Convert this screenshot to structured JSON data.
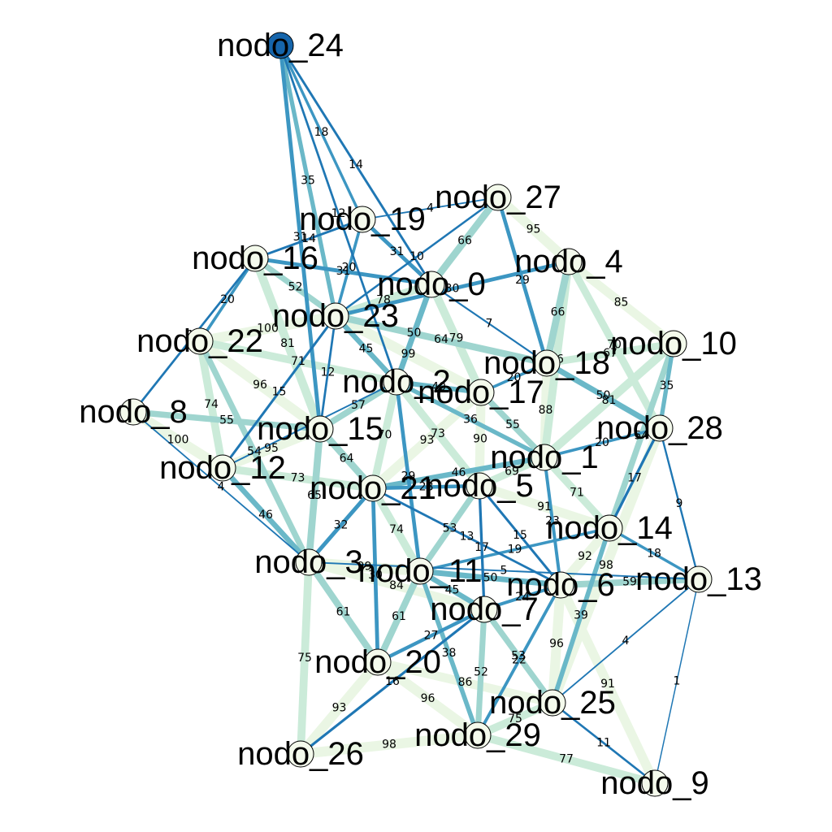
{
  "colors": {
    "background": "#ffffff",
    "node_fill": "#f4faec",
    "node_fill_highlight": "#1665ab",
    "node_stroke": "#000000",
    "edge_scale": [
      "#1f77b4",
      "#3c96c2",
      "#6ab8c8",
      "#9fd5cf",
      "#cbebd9",
      "#eaf6e4"
    ]
  },
  "nodes": [
    {
      "id": "nodo_0",
      "label": "nodo_0"
    },
    {
      "id": "nodo_1",
      "label": "nodo_1"
    },
    {
      "id": "nodo_2",
      "label": "nodo_2"
    },
    {
      "id": "nodo_3",
      "label": "nodo_3"
    },
    {
      "id": "nodo_4",
      "label": "nodo_4"
    },
    {
      "id": "nodo_5",
      "label": "nodo_5"
    },
    {
      "id": "nodo_6",
      "label": "nodo_6"
    },
    {
      "id": "nodo_7",
      "label": "nodo_7"
    },
    {
      "id": "nodo_8",
      "label": "nodo_8"
    },
    {
      "id": "nodo_9",
      "label": "nodo_9"
    },
    {
      "id": "nodo_10",
      "label": "nodo_10"
    },
    {
      "id": "nodo_11",
      "label": "nodo_11"
    },
    {
      "id": "nodo_12",
      "label": "nodo_12"
    },
    {
      "id": "nodo_13",
      "label": "nodo_13"
    },
    {
      "id": "nodo_14",
      "label": "nodo_14"
    },
    {
      "id": "nodo_15",
      "label": "nodo_15"
    },
    {
      "id": "nodo_16",
      "label": "nodo_16"
    },
    {
      "id": "nodo_17",
      "label": "nodo_17"
    },
    {
      "id": "nodo_18",
      "label": "nodo_18"
    },
    {
      "id": "nodo_19",
      "label": "nodo_19"
    },
    {
      "id": "nodo_20",
      "label": "nodo_20"
    },
    {
      "id": "nodo_21",
      "label": "nodo_21"
    },
    {
      "id": "nodo_22",
      "label": "nodo_22"
    },
    {
      "id": "nodo_23",
      "label": "nodo_23"
    },
    {
      "id": "nodo_24",
      "label": "nodo_24",
      "highlight": true
    },
    {
      "id": "nodo_25",
      "label": "nodo_25"
    },
    {
      "id": "nodo_26",
      "label": "nodo_26"
    },
    {
      "id": "nodo_27",
      "label": "nodo_27"
    },
    {
      "id": "nodo_28",
      "label": "nodo_28"
    },
    {
      "id": "nodo_29",
      "label": "nodo_29"
    }
  ],
  "edges": [
    {
      "source": "nodo_24",
      "target": "nodo_23",
      "weight": 35
    },
    {
      "source": "nodo_24",
      "target": "nodo_19",
      "weight": 18
    },
    {
      "source": "nodo_24",
      "target": "nodo_15",
      "weight": 31
    },
    {
      "source": "nodo_24",
      "target": "nodo_2",
      "weight": 12
    },
    {
      "source": "nodo_24",
      "target": "nodo_0",
      "weight": 14
    },
    {
      "source": "nodo_19",
      "target": "nodo_27",
      "weight": 4
    },
    {
      "source": "nodo_19",
      "target": "nodo_0",
      "weight": 31
    },
    {
      "source": "nodo_19",
      "target": "nodo_23",
      "weight": 20
    },
    {
      "source": "nodo_19",
      "target": "nodo_16",
      "weight": 14
    },
    {
      "source": "nodo_16",
      "target": "nodo_0",
      "weight": 31
    },
    {
      "source": "nodo_16",
      "target": "nodo_22",
      "weight": 20
    },
    {
      "source": "nodo_16",
      "target": "nodo_15",
      "weight": 81
    },
    {
      "source": "nodo_16",
      "target": "nodo_8",
      "weight": 12
    },
    {
      "source": "nodo_16",
      "target": "nodo_23",
      "weight": 52
    },
    {
      "source": "nodo_27",
      "target": "nodo_0",
      "weight": 66
    },
    {
      "source": "nodo_27",
      "target": "nodo_4",
      "weight": 95
    },
    {
      "source": "nodo_27",
      "target": "nodo_18",
      "weight": 29
    },
    {
      "source": "nodo_27",
      "target": "nodo_23",
      "weight": 10
    },
    {
      "source": "nodo_0",
      "target": "nodo_23",
      "weight": 78
    },
    {
      "source": "nodo_0",
      "target": "nodo_2",
      "weight": 50
    },
    {
      "source": "nodo_0",
      "target": "nodo_17",
      "weight": 79
    },
    {
      "source": "nodo_0",
      "target": "nodo_18",
      "weight": 7
    },
    {
      "source": "nodo_4",
      "target": "nodo_23",
      "weight": 30
    },
    {
      "source": "nodo_4",
      "target": "nodo_18",
      "weight": 66
    },
    {
      "source": "nodo_4",
      "target": "nodo_10",
      "weight": 85
    },
    {
      "source": "nodo_4",
      "target": "nodo_28",
      "weight": 70
    },
    {
      "source": "nodo_4",
      "target": "nodo_1",
      "weight": 76
    },
    {
      "source": "nodo_23",
      "target": "nodo_22",
      "weight": 100
    },
    {
      "source": "nodo_23",
      "target": "nodo_2",
      "weight": 45
    },
    {
      "source": "nodo_23",
      "target": "nodo_17",
      "weight": 99
    },
    {
      "source": "nodo_23",
      "target": "nodo_15",
      "weight": 12
    },
    {
      "source": "nodo_23",
      "target": "nodo_18",
      "weight": 64
    },
    {
      "source": "nodo_22",
      "target": "nodo_2",
      "weight": 71
    },
    {
      "source": "nodo_22",
      "target": "nodo_12",
      "weight": 74
    },
    {
      "source": "nodo_22",
      "target": "nodo_15",
      "weight": 96
    },
    {
      "source": "nodo_22",
      "target": "nodo_3",
      "weight": 54
    },
    {
      "source": "nodo_8",
      "target": "nodo_12",
      "weight": 100
    },
    {
      "source": "nodo_8",
      "target": "nodo_3",
      "weight": 4
    },
    {
      "source": "nodo_8",
      "target": "nodo_15",
      "weight": 55
    },
    {
      "source": "nodo_12",
      "target": "nodo_15",
      "weight": 95
    },
    {
      "source": "nodo_12",
      "target": "nodo_2",
      "weight": 5
    },
    {
      "source": "nodo_12",
      "target": "nodo_21",
      "weight": 73
    },
    {
      "source": "nodo_12",
      "target": "nodo_3",
      "weight": 46
    },
    {
      "source": "nodo_12",
      "target": "nodo_23",
      "weight": 15
    },
    {
      "source": "nodo_15",
      "target": "nodo_2",
      "weight": 57
    },
    {
      "source": "nodo_15",
      "target": "nodo_21",
      "weight": 64
    },
    {
      "source": "nodo_15",
      "target": "nodo_3",
      "weight": 65
    },
    {
      "source": "nodo_2",
      "target": "nodo_17",
      "weight": 40
    },
    {
      "source": "nodo_2",
      "target": "nodo_21",
      "weight": 70
    },
    {
      "source": "nodo_2",
      "target": "nodo_5",
      "weight": 73
    },
    {
      "source": "nodo_2",
      "target": "nodo_1",
      "weight": 36
    },
    {
      "source": "nodo_2",
      "target": "nodo_11",
      "weight": 29
    },
    {
      "source": "nodo_17",
      "target": "nodo_18",
      "weight": 20
    },
    {
      "source": "nodo_17",
      "target": "nodo_1",
      "weight": 55
    },
    {
      "source": "nodo_17",
      "target": "nodo_5",
      "weight": 90
    },
    {
      "source": "nodo_17",
      "target": "nodo_21",
      "weight": 93
    },
    {
      "source": "nodo_18",
      "target": "nodo_10",
      "weight": 67
    },
    {
      "source": "nodo_18",
      "target": "nodo_28",
      "weight": 50
    },
    {
      "source": "nodo_18",
      "target": "nodo_1",
      "weight": 88
    },
    {
      "source": "nodo_10",
      "target": "nodo_28",
      "weight": 35
    },
    {
      "source": "nodo_10",
      "target": "nodo_1",
      "weight": 81
    },
    {
      "source": "nodo_10",
      "target": "nodo_14",
      "weight": 54
    },
    {
      "source": "nodo_28",
      "target": "nodo_14",
      "weight": 17
    },
    {
      "source": "nodo_28",
      "target": "nodo_13",
      "weight": 9
    },
    {
      "source": "nodo_28",
      "target": "nodo_1",
      "weight": 20
    },
    {
      "source": "nodo_1",
      "target": "nodo_5",
      "weight": 69
    },
    {
      "source": "nodo_1",
      "target": "nodo_14",
      "weight": 71
    },
    {
      "source": "nodo_1",
      "target": "nodo_6",
      "weight": 23
    },
    {
      "source": "nodo_1",
      "target": "nodo_21",
      "weight": 46
    },
    {
      "source": "nodo_21",
      "target": "nodo_5",
      "weight": 28
    },
    {
      "source": "nodo_21",
      "target": "nodo_3",
      "weight": 32
    },
    {
      "source": "nodo_21",
      "target": "nodo_11",
      "weight": 74
    },
    {
      "source": "nodo_21",
      "target": "nodo_20",
      "weight": 30
    },
    {
      "source": "nodo_21",
      "target": "nodo_6",
      "weight": 13
    },
    {
      "source": "nodo_5",
      "target": "nodo_11",
      "weight": 53
    },
    {
      "source": "nodo_5",
      "target": "nodo_6",
      "weight": 15
    },
    {
      "source": "nodo_5",
      "target": "nodo_14",
      "weight": 91
    },
    {
      "source": "nodo_5",
      "target": "nodo_7",
      "weight": 17
    },
    {
      "source": "nodo_14",
      "target": "nodo_13",
      "weight": 18
    },
    {
      "source": "nodo_14",
      "target": "nodo_6",
      "weight": 92
    },
    {
      "source": "nodo_14",
      "target": "nodo_11",
      "weight": 19
    },
    {
      "source": "nodo_14",
      "target": "nodo_25",
      "weight": 39
    },
    {
      "source": "nodo_3",
      "target": "nodo_11",
      "weight": 99
    },
    {
      "source": "nodo_3",
      "target": "nodo_20",
      "weight": 61
    },
    {
      "source": "nodo_3",
      "target": "nodo_26",
      "weight": 75
    },
    {
      "source": "nodo_3",
      "target": "nodo_7",
      "weight": 84
    },
    {
      "source": "nodo_3",
      "target": "nodo_13",
      "weight": 5
    },
    {
      "source": "nodo_11",
      "target": "nodo_7",
      "weight": 45
    },
    {
      "source": "nodo_11",
      "target": "nodo_20",
      "weight": 61
    },
    {
      "source": "nodo_11",
      "target": "nodo_6",
      "weight": 50
    },
    {
      "source": "nodo_11",
      "target": "nodo_29",
      "weight": 38
    },
    {
      "source": "nodo_6",
      "target": "nodo_13",
      "weight": 59
    },
    {
      "source": "nodo_6",
      "target": "nodo_7",
      "weight": 24
    },
    {
      "source": "nodo_6",
      "target": "nodo_25",
      "weight": 96
    },
    {
      "source": "nodo_6",
      "target": "nodo_9",
      "weight": 91
    },
    {
      "source": "nodo_6",
      "target": "nodo_29",
      "weight": 22
    },
    {
      "source": "nodo_13",
      "target": "nodo_25",
      "weight": 4
    },
    {
      "source": "nodo_13",
      "target": "nodo_9",
      "weight": 1
    },
    {
      "source": "nodo_7",
      "target": "nodo_20",
      "weight": 27
    },
    {
      "source": "nodo_7",
      "target": "nodo_29",
      "weight": 52
    },
    {
      "source": "nodo_7",
      "target": "nodo_25",
      "weight": 53
    },
    {
      "source": "nodo_7",
      "target": "nodo_26",
      "weight": 16
    },
    {
      "source": "nodo_20",
      "target": "nodo_26",
      "weight": 93
    },
    {
      "source": "nodo_20",
      "target": "nodo_29",
      "weight": 96
    },
    {
      "source": "nodo_20",
      "target": "nodo_25",
      "weight": 86
    },
    {
      "source": "nodo_26",
      "target": "nodo_29",
      "weight": 98
    },
    {
      "source": "nodo_29",
      "target": "nodo_25",
      "weight": 75
    },
    {
      "source": "nodo_29",
      "target": "nodo_9",
      "weight": 77
    },
    {
      "source": "nodo_25",
      "target": "nodo_9",
      "weight": 11
    },
    {
      "source": "nodo_25",
      "target": "nodo_28",
      "weight": 98
    }
  ]
}
